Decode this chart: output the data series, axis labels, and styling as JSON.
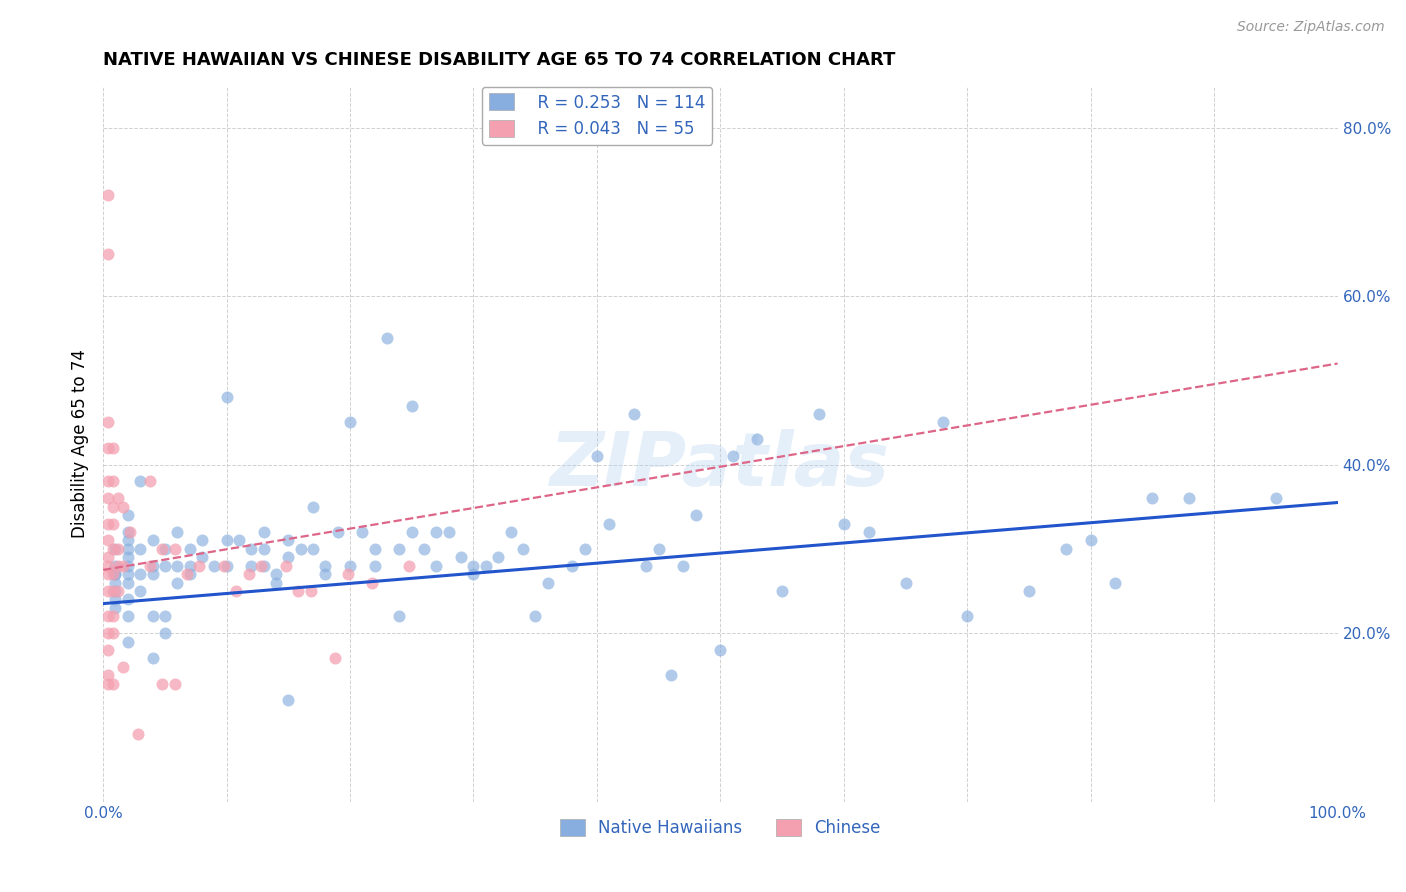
{
  "title": "NATIVE HAWAIIAN VS CHINESE DISABILITY AGE 65 TO 74 CORRELATION CHART",
  "source": "Source: ZipAtlas.com",
  "ylabel": "Disability Age 65 to 74",
  "xlim": [
    0,
    1.0
  ],
  "ylim": [
    0,
    0.85
  ],
  "xticks": [
    0.0,
    0.1,
    0.2,
    0.3,
    0.4,
    0.5,
    0.6,
    0.7,
    0.8,
    0.9,
    1.0
  ],
  "yticks": [
    0.0,
    0.2,
    0.4,
    0.6,
    0.8
  ],
  "blue_R": "0.253",
  "blue_N": "114",
  "pink_R": "0.043",
  "pink_N": "55",
  "blue_color": "#87AEDE",
  "pink_color": "#F4A0B0",
  "blue_line_color": "#2255CC",
  "pink_line_color": "#DD6688",
  "watermark": "ZIPatlas",
  "legend_label_blue": "Native Hawaiians",
  "legend_label_pink": "Chinese",
  "blue_points_x": [
    0.01,
    0.01,
    0.01,
    0.01,
    0.01,
    0.01,
    0.01,
    0.01,
    0.02,
    0.02,
    0.02,
    0.02,
    0.02,
    0.02,
    0.02,
    0.02,
    0.02,
    0.02,
    0.02,
    0.03,
    0.03,
    0.03,
    0.03,
    0.04,
    0.04,
    0.04,
    0.04,
    0.04,
    0.05,
    0.05,
    0.05,
    0.05,
    0.06,
    0.06,
    0.06,
    0.07,
    0.07,
    0.07,
    0.08,
    0.08,
    0.09,
    0.1,
    0.1,
    0.1,
    0.11,
    0.12,
    0.12,
    0.13,
    0.13,
    0.13,
    0.14,
    0.14,
    0.15,
    0.15,
    0.15,
    0.16,
    0.17,
    0.17,
    0.18,
    0.18,
    0.19,
    0.2,
    0.2,
    0.21,
    0.22,
    0.22,
    0.23,
    0.24,
    0.24,
    0.25,
    0.25,
    0.26,
    0.27,
    0.27,
    0.28,
    0.29,
    0.3,
    0.3,
    0.31,
    0.32,
    0.33,
    0.34,
    0.35,
    0.36,
    0.38,
    0.39,
    0.4,
    0.41,
    0.43,
    0.44,
    0.45,
    0.46,
    0.47,
    0.48,
    0.5,
    0.51,
    0.53,
    0.55,
    0.58,
    0.6,
    0.62,
    0.65,
    0.68,
    0.7,
    0.75,
    0.78,
    0.8,
    0.82,
    0.85,
    0.88,
    0.95
  ],
  "blue_points_y": [
    0.25,
    0.27,
    0.28,
    0.3,
    0.27,
    0.26,
    0.24,
    0.23,
    0.22,
    0.3,
    0.32,
    0.28,
    0.29,
    0.31,
    0.34,
    0.27,
    0.26,
    0.24,
    0.19,
    0.38,
    0.3,
    0.27,
    0.25,
    0.31,
    0.28,
    0.27,
    0.22,
    0.17,
    0.3,
    0.28,
    0.22,
    0.2,
    0.32,
    0.28,
    0.26,
    0.3,
    0.28,
    0.27,
    0.31,
    0.29,
    0.28,
    0.48,
    0.31,
    0.28,
    0.31,
    0.3,
    0.28,
    0.32,
    0.28,
    0.3,
    0.27,
    0.26,
    0.31,
    0.29,
    0.12,
    0.3,
    0.35,
    0.3,
    0.28,
    0.27,
    0.32,
    0.45,
    0.28,
    0.32,
    0.3,
    0.28,
    0.55,
    0.3,
    0.22,
    0.32,
    0.47,
    0.3,
    0.32,
    0.28,
    0.32,
    0.29,
    0.27,
    0.28,
    0.28,
    0.29,
    0.32,
    0.3,
    0.22,
    0.26,
    0.28,
    0.3,
    0.41,
    0.33,
    0.46,
    0.28,
    0.3,
    0.15,
    0.28,
    0.34,
    0.18,
    0.41,
    0.43,
    0.25,
    0.46,
    0.33,
    0.32,
    0.26,
    0.45,
    0.22,
    0.25,
    0.3,
    0.31,
    0.26,
    0.36,
    0.36,
    0.36
  ],
  "pink_points_x": [
    0.004,
    0.004,
    0.004,
    0.004,
    0.004,
    0.004,
    0.004,
    0.004,
    0.004,
    0.004,
    0.004,
    0.004,
    0.004,
    0.004,
    0.004,
    0.004,
    0.004,
    0.008,
    0.008,
    0.008,
    0.008,
    0.008,
    0.008,
    0.008,
    0.008,
    0.008,
    0.008,
    0.012,
    0.012,
    0.012,
    0.012,
    0.016,
    0.016,
    0.016,
    0.022,
    0.028,
    0.038,
    0.038,
    0.048,
    0.048,
    0.058,
    0.058,
    0.068,
    0.078,
    0.098,
    0.108,
    0.118,
    0.128,
    0.148,
    0.158,
    0.168,
    0.188,
    0.198,
    0.218,
    0.248
  ],
  "pink_points_y": [
    0.72,
    0.65,
    0.45,
    0.42,
    0.38,
    0.36,
    0.33,
    0.31,
    0.29,
    0.28,
    0.27,
    0.25,
    0.22,
    0.2,
    0.18,
    0.15,
    0.14,
    0.42,
    0.38,
    0.35,
    0.33,
    0.3,
    0.27,
    0.25,
    0.22,
    0.2,
    0.14,
    0.36,
    0.3,
    0.28,
    0.25,
    0.35,
    0.28,
    0.16,
    0.32,
    0.08,
    0.38,
    0.28,
    0.3,
    0.14,
    0.3,
    0.14,
    0.27,
    0.28,
    0.28,
    0.25,
    0.27,
    0.28,
    0.28,
    0.25,
    0.25,
    0.17,
    0.27,
    0.26,
    0.28
  ],
  "blue_trend_y_start": 0.235,
  "blue_trend_y_end": 0.355,
  "pink_trend_y_start": 0.275,
  "pink_trend_y_end": 0.52
}
